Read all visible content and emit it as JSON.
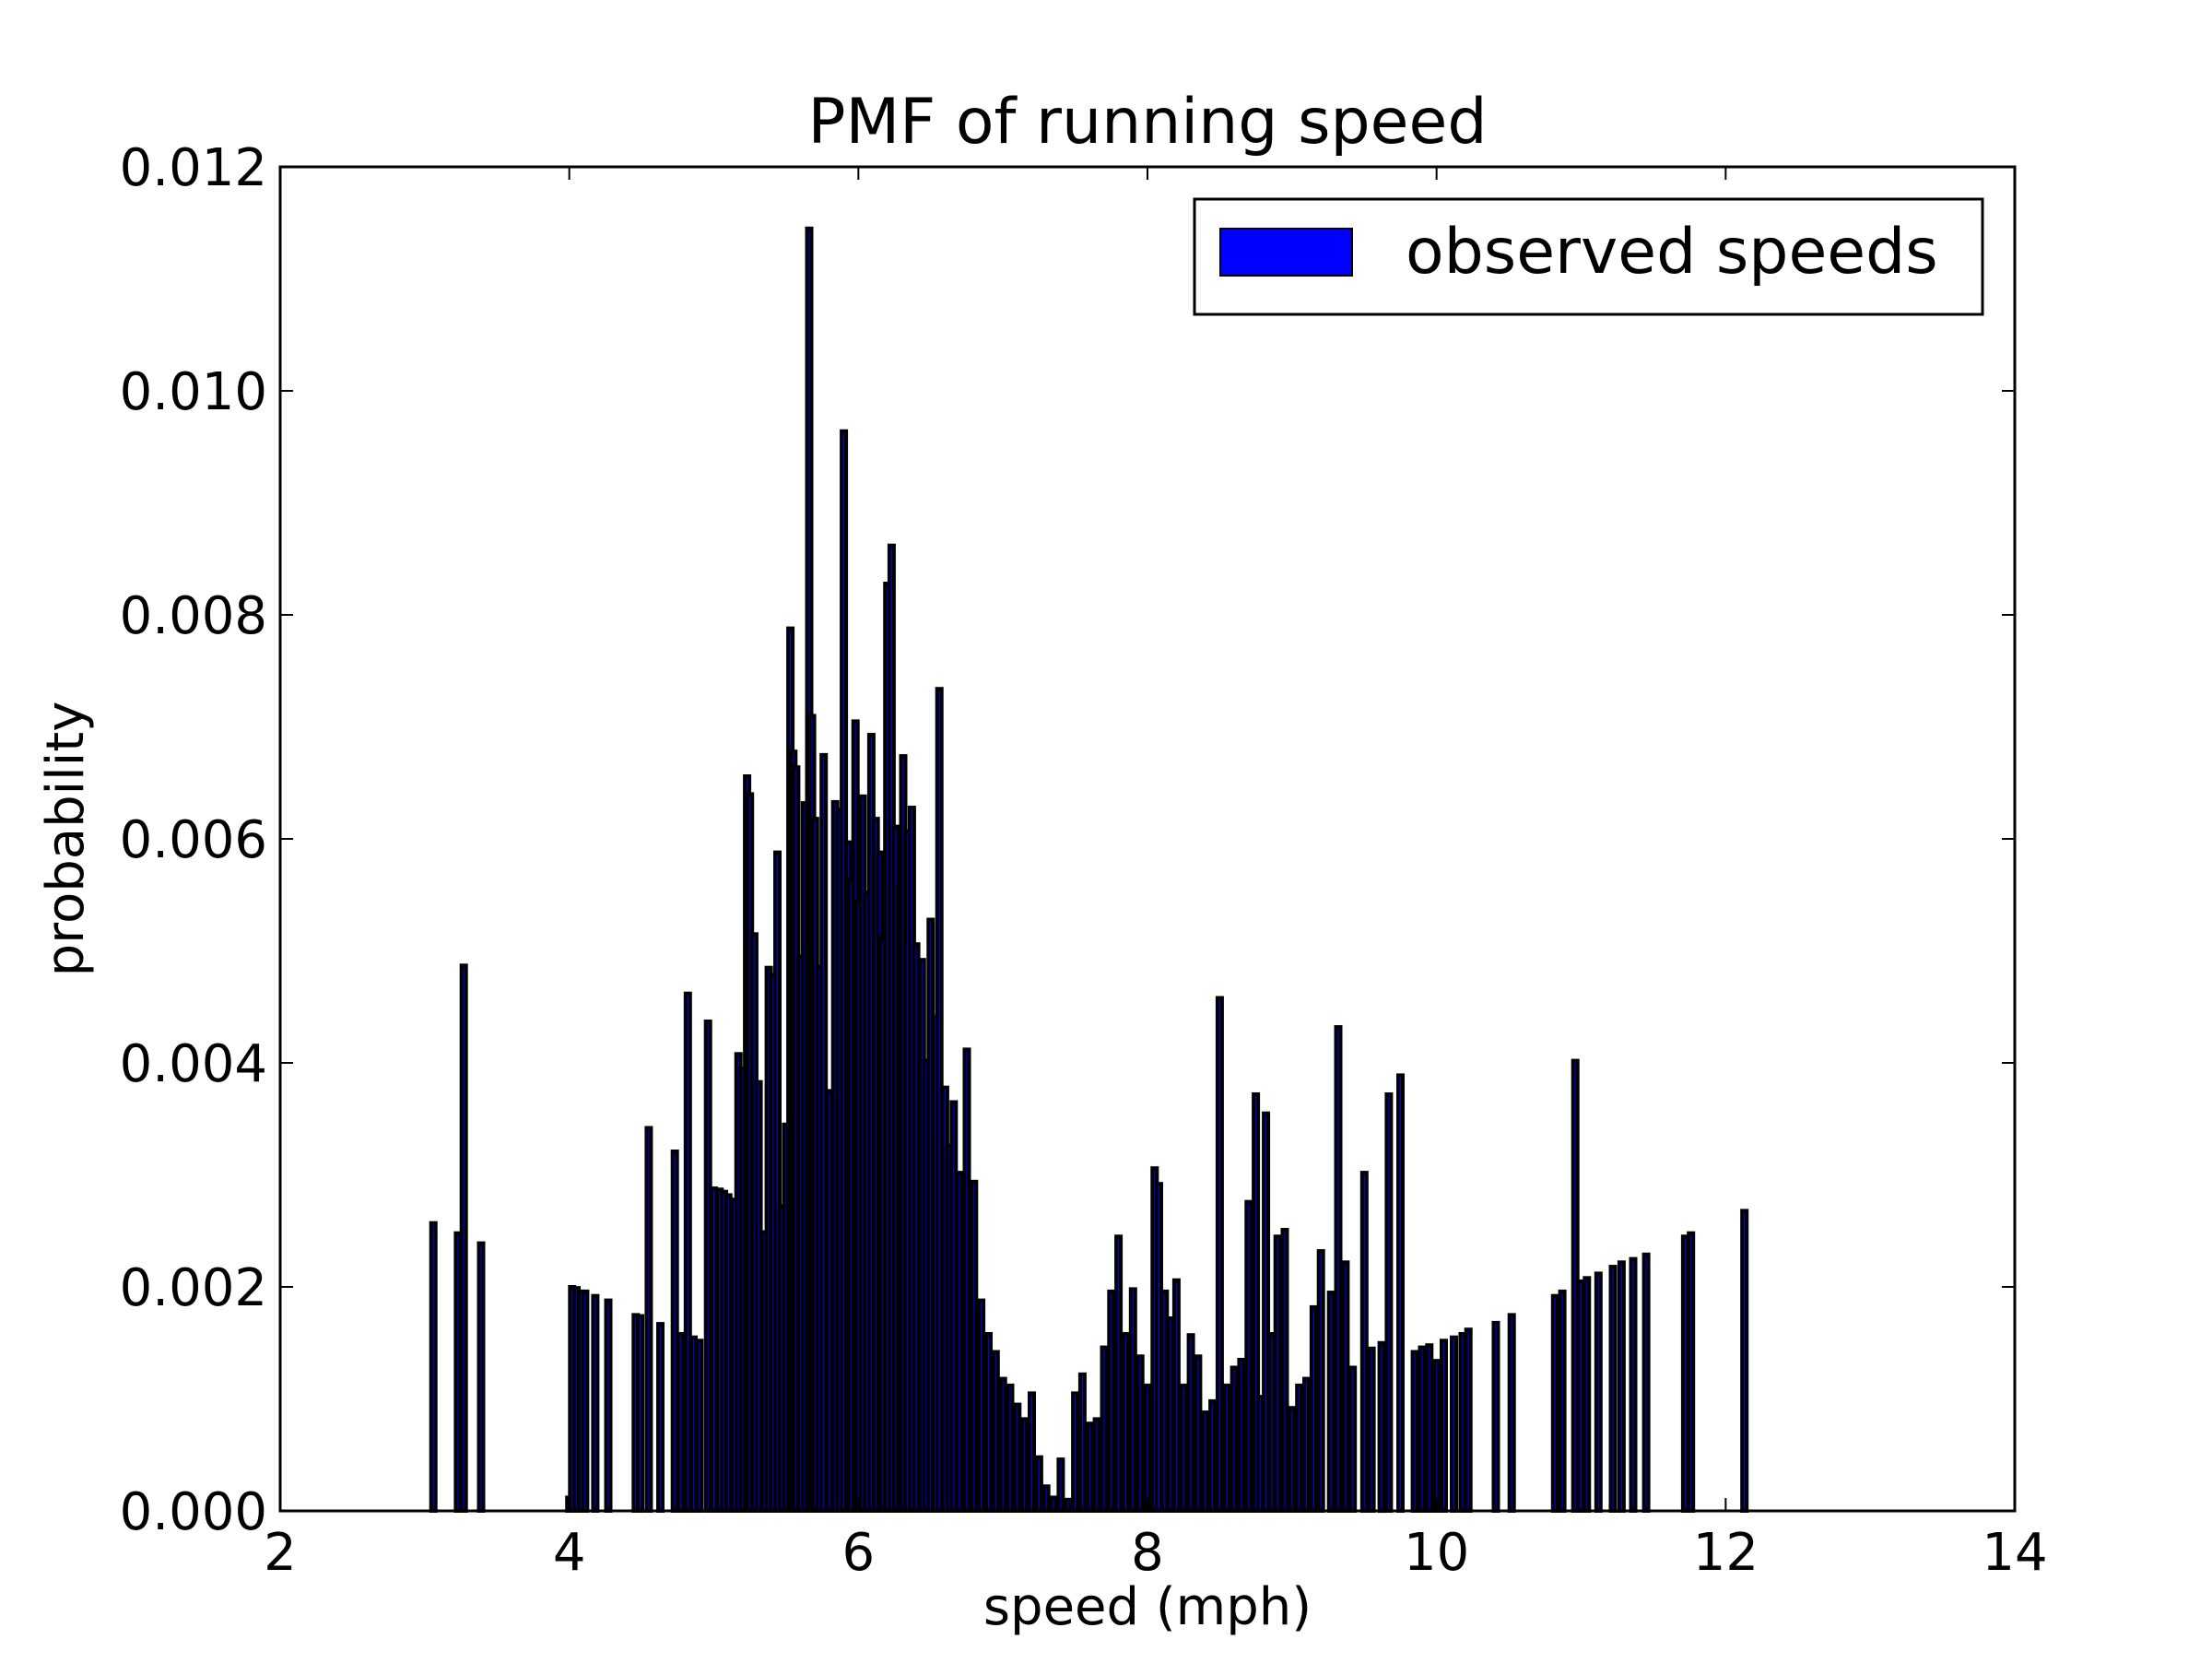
{
  "chart_data": {
    "type": "bar",
    "title": "PMF of running speed",
    "xlabel": "speed (mph)",
    "ylabel": "probability",
    "xlim": [
      2,
      14
    ],
    "ylim": [
      0,
      0.012
    ],
    "xticks": [
      "2",
      "4",
      "6",
      "8",
      "10",
      "12",
      "14"
    ],
    "yticks": [
      "0.000",
      "0.002",
      "0.004",
      "0.006",
      "0.008",
      "0.010",
      "0.012"
    ],
    "grid": false,
    "legend": {
      "position": "top-right"
    },
    "series": [
      {
        "name": "observed speeds",
        "color": "#0000ff",
        "x": [
          3.06,
          3.23,
          3.27,
          3.39,
          4.0,
          4.02,
          4.05,
          4.08,
          4.11,
          4.18,
          4.27,
          4.46,
          4.49,
          4.55,
          4.63,
          4.73,
          4.77,
          4.82,
          4.86,
          4.9,
          4.96,
          5.0,
          5.04,
          5.07,
          5.1,
          5.14,
          5.17,
          5.2,
          5.23,
          5.25,
          5.28,
          5.31,
          5.35,
          5.38,
          5.41,
          5.44,
          5.47,
          5.5,
          5.53,
          5.55,
          5.57,
          5.6,
          5.63,
          5.66,
          5.68,
          5.7,
          5.73,
          5.76,
          5.8,
          5.84,
          5.87,
          5.9,
          5.93,
          5.95,
          5.98,
          6.0,
          6.03,
          6.06,
          6.09,
          6.12,
          6.15,
          6.17,
          6.2,
          6.23,
          6.26,
          6.29,
          6.31,
          6.34,
          6.37,
          6.4,
          6.44,
          6.47,
          6.5,
          6.53,
          6.56,
          6.6,
          6.63,
          6.66,
          6.7,
          6.75,
          6.8,
          6.85,
          6.9,
          6.95,
          7.0,
          7.05,
          7.1,
          7.15,
          7.2,
          7.25,
          7.3,
          7.35,
          7.4,
          7.45,
          7.5,
          7.55,
          7.6,
          7.65,
          7.7,
          7.75,
          7.8,
          7.85,
          7.9,
          7.95,
          8.0,
          8.05,
          8.08,
          8.12,
          8.16,
          8.2,
          8.25,
          8.3,
          8.35,
          8.4,
          8.45,
          8.5,
          8.55,
          8.6,
          8.65,
          8.7,
          8.75,
          8.78,
          8.82,
          8.86,
          8.9,
          8.95,
          9.0,
          9.05,
          9.1,
          9.15,
          9.2,
          9.27,
          9.32,
          9.37,
          9.42,
          9.5,
          9.55,
          9.62,
          9.67,
          9.75,
          9.85,
          9.9,
          9.95,
          10.0,
          10.05,
          10.12,
          10.18,
          10.22,
          10.41,
          10.52,
          10.82,
          10.87,
          10.96,
          11.0,
          11.04,
          11.12,
          11.22,
          11.28,
          11.36,
          11.45,
          11.72,
          11.76,
          12.13
        ],
        "values": [
          0.00257,
          0.00248,
          0.00487,
          0.00239,
          0.00012,
          0.002,
          0.00199,
          0.00196,
          0.00196,
          0.00192,
          0.00188,
          0.00175,
          0.00174,
          0.00342,
          0.00167,
          0.00321,
          0.00158,
          0.00462,
          0.00155,
          0.00152,
          0.00437,
          0.00288,
          0.00287,
          0.00285,
          0.00282,
          0.00278,
          0.00408,
          0.00395,
          0.00656,
          0.0064,
          0.00515,
          0.00383,
          0.00249,
          0.00485,
          0.00479,
          0.00588,
          0.00272,
          0.00345,
          0.00788,
          0.00678,
          0.00664,
          0.00495,
          0.00632,
          0.01145,
          0.0071,
          0.00618,
          0.00486,
          0.00675,
          0.00375,
          0.00633,
          0.00626,
          0.00964,
          0.00597,
          0.00564,
          0.00705,
          0.00544,
          0.00638,
          0.00552,
          0.00693,
          0.00618,
          0.00588,
          0.00512,
          0.00828,
          0.00862,
          0.00611,
          0.00557,
          0.00674,
          0.00607,
          0.00628,
          0.00506,
          0.00492,
          0.00402,
          0.00528,
          0.00441,
          0.00734,
          0.00378,
          0.00326,
          0.00365,
          0.00302,
          0.00412,
          0.00294,
          0.00188,
          0.00158,
          0.00142,
          0.00118,
          0.00112,
          0.00095,
          0.00082,
          0.00105,
          0.00048,
          0.00022,
          0.00012,
          0.00046,
          0.0001,
          0.00105,
          0.00122,
          0.00078,
          0.00082,
          0.00146,
          0.00196,
          0.00245,
          0.00158,
          0.00198,
          0.00138,
          0.00112,
          0.00306,
          0.00292,
          0.00196,
          0.00172,
          0.00206,
          0.00112,
          0.00157,
          0.00138,
          0.00088,
          0.00098,
          0.00458,
          0.00112,
          0.00128,
          0.00135,
          0.00276,
          0.00372,
          0.00102,
          0.00355,
          0.00158,
          0.00245,
          0.00251,
          0.00092,
          0.00112,
          0.00118,
          0.00182,
          0.00232,
          0.00195,
          0.00432,
          0.00222,
          0.00128,
          0.00302,
          0.00145,
          0.0015,
          0.00372,
          0.00389,
          0.00142,
          0.00146,
          0.00148,
          0.00134,
          0.00152,
          0.00155,
          0.00158,
          0.00162,
          0.00168,
          0.00175,
          0.00192,
          0.00196,
          0.00402,
          0.00205,
          0.00208,
          0.00212,
          0.00218,
          0.00222,
          0.00225,
          0.00229,
          0.00245,
          0.00248,
          0.00268
        ]
      }
    ]
  }
}
